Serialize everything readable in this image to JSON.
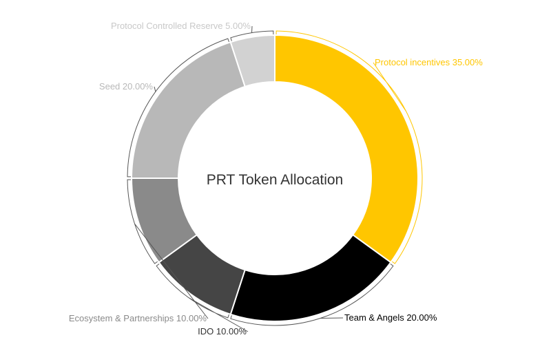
{
  "chart_data": {
    "type": "pie",
    "title": "PRT Token Allocation",
    "slices": [
      {
        "label": "Protocol incentives 35.00%",
        "value": 35.0,
        "color": "#FFC600",
        "label_color": "#FFC600"
      },
      {
        "label": "Team & Angels 20.00%",
        "value": 20.0,
        "color": "#000000",
        "label_color": "#000000"
      },
      {
        "label": "IDO 10.00%",
        "value": 10.0,
        "color": "#454545",
        "label_color": "#333333"
      },
      {
        "label": "Ecosystem & Partnerships 10.00%",
        "value": 10.0,
        "color": "#8A8A8A",
        "label_color": "#8A8A8A"
      },
      {
        "label": "Seed 20.00%",
        "value": 20.0,
        "color": "#B8B8B8",
        "label_color": "#B8B8B8"
      },
      {
        "label": "Protocol Controlled Reserve 5.00%",
        "value": 5.0,
        "color": "#D2D2D2",
        "label_color": "#C8C8C8"
      }
    ]
  }
}
